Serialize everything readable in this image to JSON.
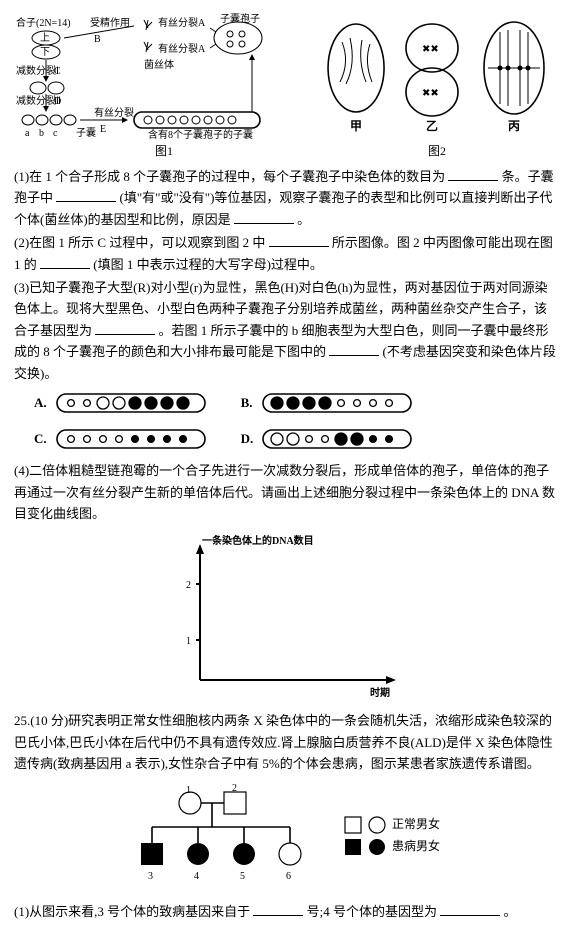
{
  "fig1": {
    "caption": "图1",
    "labels": {
      "zygote": "合子(2N=14)",
      "fertilization": "受精作用",
      "meiosis1": "减数分裂Ⅰ",
      "meiosis2": "减数分裂Ⅱ",
      "mitosis": "有丝分裂",
      "ascospore": "子囊孢子",
      "mycelium": "菌丝体",
      "ascus": "子囊",
      "ascus8": "含有8个子囊孢子的子囊",
      "A": "A",
      "B": "B",
      "C": "C",
      "D": "D",
      "E": "E",
      "a": "a",
      "b": "b",
      "c": "c",
      "上": "上",
      "下": "下"
    }
  },
  "fig2": {
    "caption": "图2",
    "labels": {
      "jia": "甲",
      "yi": "乙",
      "bing": "丙"
    }
  },
  "q1": {
    "p1a": "(1)在 1 个合子形成 8 个子囊孢子的过程中，每个子囊孢子中染色体的数目为",
    "p1b": "条。子囊孢子中",
    "p1c": "(填\"有\"或\"没有\")等位基因，观察子囊孢子的表型和比例可以直接判断出子代个体(菌丝体)的基因型和比例，原因是",
    "p1d": "。"
  },
  "q2": {
    "p1": "(2)在图 1 所示 C 过程中，可以观察到图 2 中",
    "p2": "所示图像。图 2 中丙图像可能出现在图 1 的",
    "p3": "(填图 1 中表示过程的大写字母)过程中。"
  },
  "q3": {
    "p1": "(3)已知子囊孢子大型(R)对小型(r)为显性，黑色(H)对白色(h)为显性，两对基因位于两对同源染色体上。现将大型黑色、小型白色两种子囊孢子分别培养成菌丝，两种菌丝杂交产生合子，该合子基因型为",
    "p2": "。若图 1 所示子囊中的 b 细胞表型为大型白色，则同一子囊中最终形成的 8 个子囊孢子的颜色和大小排布最可能是下图中的",
    "p3": "(不考虑基因突变和染色体片段交换)。"
  },
  "options": {
    "A": {
      "label": "A.",
      "pattern": [
        "ws",
        "ws",
        "wb",
        "wb",
        "bb",
        "bb",
        "bb",
        "bb"
      ]
    },
    "B": {
      "label": "B.",
      "pattern": [
        "bb",
        "bb",
        "bb",
        "bb",
        "ws",
        "ws",
        "ws",
        "ws"
      ]
    },
    "C": {
      "label": "C.",
      "pattern": [
        "ws",
        "ws",
        "ws",
        "ws",
        "bs",
        "bs",
        "bs",
        "bs"
      ]
    },
    "D": {
      "label": "D.",
      "pattern": [
        "wb",
        "wb",
        "ws",
        "ws",
        "bb",
        "bb",
        "bs",
        "bs"
      ]
    }
  },
  "q4": {
    "p1": "(4)二倍体粗糙型链孢霉的一个合子先进行一次减数分裂后，形成单倍体的孢子，单倍体的孢子再通过一次有丝分裂产生新的单倍体后代。请画出上述细胞分裂过程中一条染色体上的 DNA 数目变化曲线图。",
    "chart": {
      "ylabel": "一条染色体上的DNA数目",
      "xlabel": "时期",
      "yticks": [
        1,
        2
      ],
      "axis_color": "#000",
      "bg": "#ffffff"
    }
  },
  "q25": {
    "head": "25.(10 分)研究表明正常女性细胞核内两条 X 染色体中的一条会随机失活，浓缩形成染色较深的巴氏小体,巴氏小体在后代中仍不具有遗传效应.肾上腺脑白质营养不良(ALD)是伴 X 染色体隐性遗传病(致病基因用 a 表示),女性杂合子中有 5%的个体会患病，图示某患者家族遗传系谱图。",
    "legend": {
      "normal": "正常男女",
      "affected": "患病男女"
    },
    "pedigree": {
      "gen1": [
        {
          "n": 1,
          "shape": "circle",
          "fill": "w"
        },
        {
          "n": 2,
          "shape": "square",
          "fill": "w"
        }
      ],
      "gen2": [
        {
          "n": 3,
          "shape": "square",
          "fill": "b"
        },
        {
          "n": 4,
          "shape": "circle",
          "fill": "b"
        },
        {
          "n": 5,
          "shape": "circle",
          "fill": "b"
        },
        {
          "n": 6,
          "shape": "circle",
          "fill": "w"
        }
      ]
    },
    "q1a": "(1)从图示来看,3 号个体的致病基因来自于",
    "q1b": "号;4 号个体的基因型为",
    "q1c": "。"
  }
}
